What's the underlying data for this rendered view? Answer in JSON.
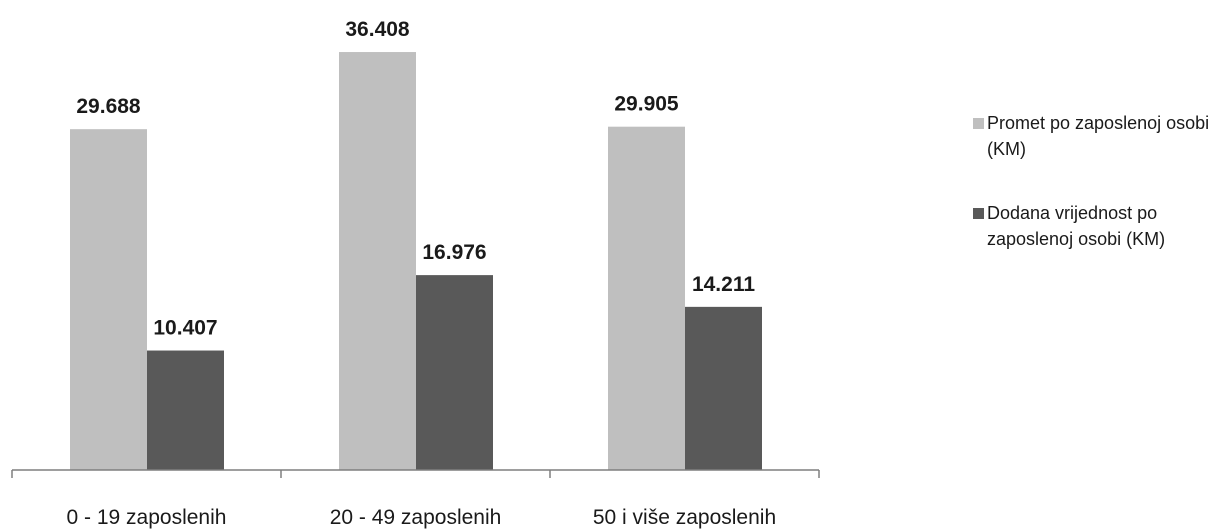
{
  "chart_data": {
    "type": "bar",
    "categories": [
      "0 - 19 zaposlenih",
      "20 - 49 zaposlenih",
      "50 i više zaposlenih"
    ],
    "series": [
      {
        "name": "Promet po zaposlenoj osobi (KM)",
        "values": [
          29688,
          36408,
          29905
        ],
        "labels": [
          "29.688",
          "36.408",
          "29.905"
        ],
        "color": "#bfbfbf"
      },
      {
        "name": "Dodana vrijednost po zaposlenoj osobi (KM)",
        "values": [
          10407,
          16976,
          14211
        ],
        "labels": [
          "10.407",
          "16.976",
          "14.211"
        ],
        "color": "#595959"
      }
    ],
    "ylim": [
      0,
      40000
    ],
    "grid": false,
    "legend_position": "right"
  }
}
